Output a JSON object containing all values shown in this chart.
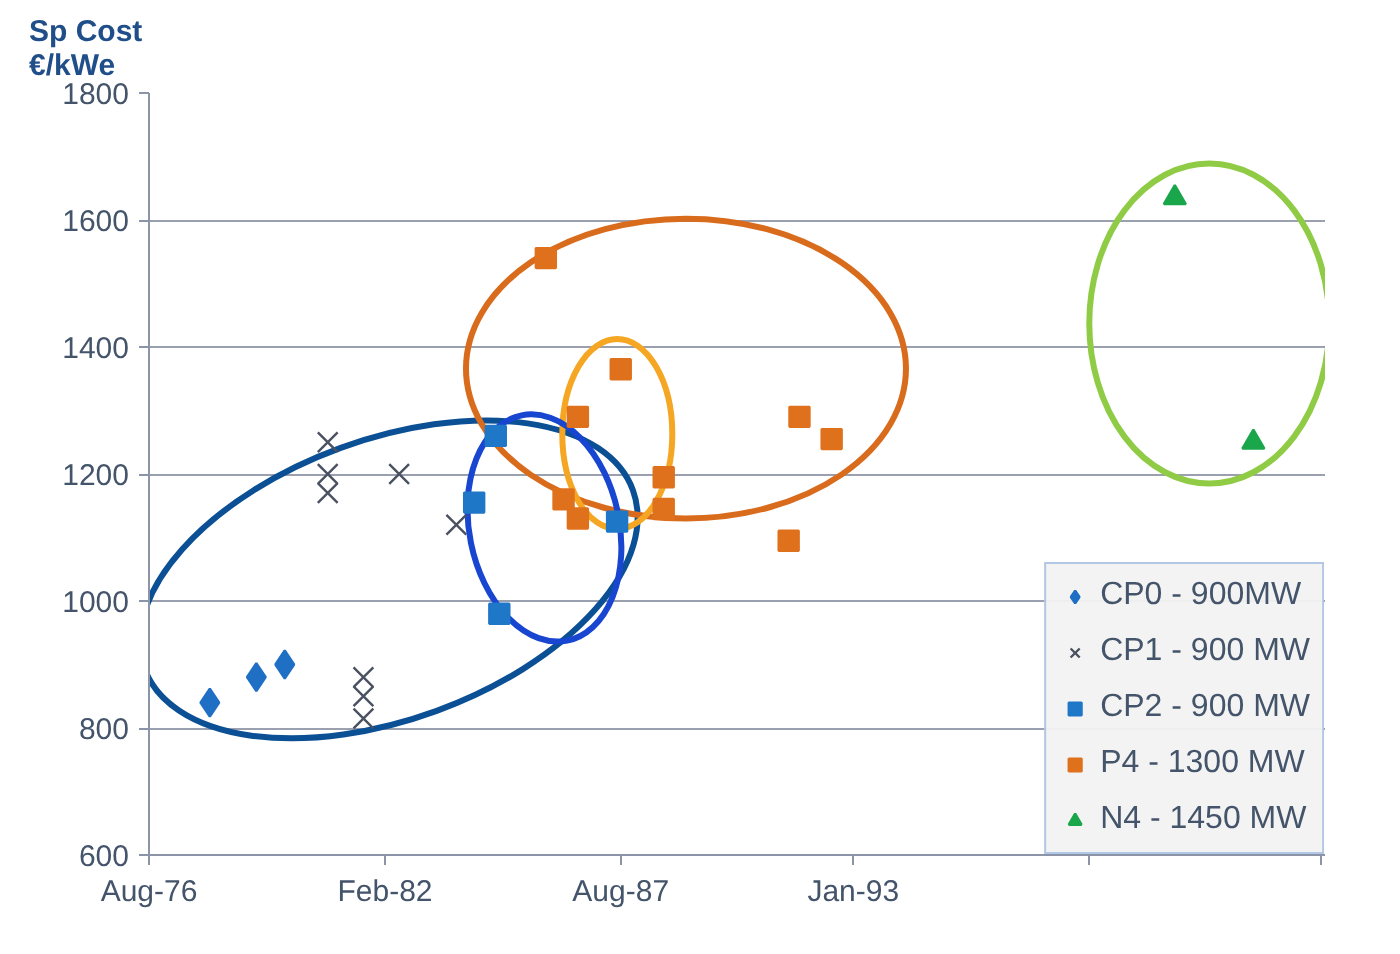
{
  "chart_data": {
    "type": "scatter",
    "ylabel": "Sp Cost\n€/kWe",
    "xlim": [
      "1976-08",
      "2004-01"
    ],
    "xticks": [
      {
        "value": "1976-08",
        "label": "Aug-76"
      },
      {
        "value": "1982-02",
        "label": "Feb-82"
      },
      {
        "value": "1987-08",
        "label": "Aug-87"
      },
      {
        "value": "1993-01",
        "label": "Jan-93"
      },
      {
        "value": "1998-07",
        "label": null
      },
      {
        "value": "2003-12",
        "label": null
      }
    ],
    "ylim": [
      600,
      1800
    ],
    "yticks": [
      600,
      800,
      1000,
      1200,
      1400,
      1600,
      1800
    ],
    "grid": "y",
    "legend": "bottom right",
    "series": [
      {
        "name": "CP0 - 900MW",
        "color": "#1f6fc5",
        "marker": "diamond",
        "x": [
          "1978-01",
          "1979-02",
          "1979-10"
        ],
        "values": [
          840,
          880,
          900
        ]
      },
      {
        "name": "CP1 - 900 MW",
        "color": "#4a5160",
        "marker": "cross",
        "x": [
          "1980-10",
          "1980-10",
          "1980-10",
          "1982-06",
          "1983-10",
          "1981-08",
          "1981-08",
          "1981-08"
        ],
        "values": [
          1250,
          1200,
          1170,
          1200,
          1120,
          880,
          850,
          815
        ]
      },
      {
        "name": "CP2 - 900 MW",
        "color": "#1f77c8",
        "marker": "square",
        "x": [
          "1984-09",
          "1984-03",
          "1984-10",
          "1987-07"
        ],
        "values": [
          1260,
          1155,
          980,
          1125
        ]
      },
      {
        "name": "P4 - 1300 MW",
        "color": "#e0711c",
        "marker": "square",
        "x": [
          "1985-11",
          "1987-08",
          "1986-08",
          "1988-08",
          "1988-08",
          "1986-04",
          "1986-08",
          "1991-10",
          "1992-07",
          "1991-07"
        ],
        "values": [
          1540,
          1365,
          1290,
          1195,
          1145,
          1160,
          1130,
          1290,
          1255,
          1095
        ]
      },
      {
        "name": "N4 - 1450 MW",
        "color": "#1aa64a",
        "marker": "triangle",
        "x": [
          "2000-07",
          "2002-05"
        ],
        "values": [
          1635,
          1250
        ]
      }
    ]
  }
}
